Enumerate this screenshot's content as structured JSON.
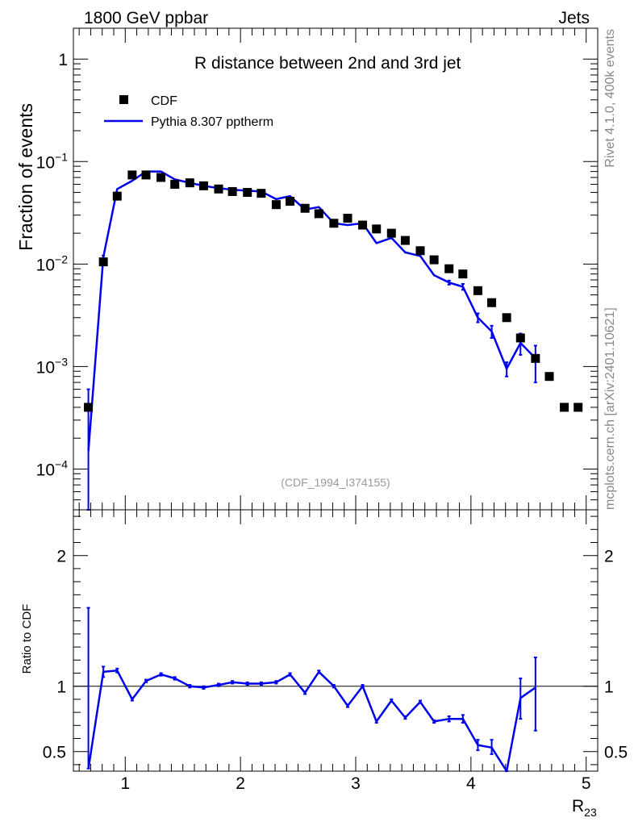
{
  "header": {
    "left_label": "1800 GeV ppbar",
    "right_label": "Jets"
  },
  "side_labels": {
    "rivet": "Rivet 4.1.0,  400k events",
    "mcplots": "mcplots.cern.ch [arXiv:2401.10621]"
  },
  "colors": {
    "data": "#000000",
    "mc": "#0000ee",
    "reference_line": "#000000",
    "watermark": "#999999"
  },
  "chart_data": [
    {
      "type": "scatter",
      "name": "main-panel",
      "title": "R distance between 2nd and 3rd jet",
      "watermark": "(CDF_1994_I374155)",
      "ylabel": "Fraction of events",
      "yscale": "log",
      "ylim": [
        4e-05,
        2
      ],
      "xlim": [
        0.55,
        5.1
      ],
      "y_tick_labels": [
        "1",
        "10^-1",
        "10^-2",
        "10^-3",
        "10^-4"
      ],
      "legend": [
        {
          "label": "CDF",
          "marker": "square"
        },
        {
          "label": "Pythia 8.307 pptherm",
          "marker": "line"
        }
      ],
      "series": [
        {
          "name": "CDF",
          "x": [
            0.68,
            0.81,
            0.93,
            1.06,
            1.18,
            1.31,
            1.43,
            1.56,
            1.68,
            1.81,
            1.93,
            2.06,
            2.18,
            2.31,
            2.43,
            2.56,
            2.68,
            2.81,
            2.93,
            3.06,
            3.18,
            3.31,
            3.43,
            3.56,
            3.68,
            3.81,
            3.93,
            4.06,
            4.18,
            4.31,
            4.43,
            4.56,
            4.68,
            4.81,
            4.93
          ],
          "y": [
            0.0004,
            0.0105,
            0.046,
            0.074,
            0.074,
            0.07,
            0.06,
            0.062,
            0.058,
            0.054,
            0.051,
            0.05,
            0.049,
            0.038,
            0.041,
            0.035,
            0.031,
            0.025,
            0.028,
            0.024,
            0.022,
            0.02,
            0.017,
            0.0135,
            0.011,
            0.009,
            0.008,
            0.0055,
            0.0042,
            0.003,
            0.0019,
            0.0012,
            0.0008,
            0.0004,
            0.0004
          ]
        },
        {
          "name": "Pythia 8.307 pptherm",
          "x": [
            0.68,
            0.81,
            0.93,
            1.06,
            1.18,
            1.31,
            1.43,
            1.56,
            1.68,
            1.81,
            1.93,
            2.06,
            2.18,
            2.31,
            2.43,
            2.56,
            2.68,
            2.81,
            2.93,
            3.06,
            3.18,
            3.31,
            3.43,
            3.56,
            3.68,
            3.81,
            3.93,
            4.06,
            4.18,
            4.31,
            4.43,
            4.56
          ],
          "y": [
            0.00015,
            0.0117,
            0.054,
            0.065,
            0.08,
            0.08,
            0.067,
            0.062,
            0.058,
            0.055,
            0.053,
            0.052,
            0.051,
            0.043,
            0.046,
            0.034,
            0.036,
            0.025,
            0.024,
            0.025,
            0.016,
            0.018,
            0.013,
            0.012,
            0.0078,
            0.0066,
            0.006,
            0.003,
            0.0022,
            0.00095,
            0.0017,
            0.0012
          ],
          "err_low": [
            0.00014,
            0.0004,
            0.0007,
            0.0008,
            0.0008,
            0.0008,
            0.0007,
            0.0007,
            0.0006,
            0.0006,
            0.0006,
            0.0006,
            0.0006,
            0.0005,
            0.0005,
            0.0004,
            0.0004,
            0.0004,
            0.0003,
            0.0003,
            0.0003,
            0.0003,
            0.0003,
            0.0003,
            0.0002,
            0.0003,
            0.0004,
            0.0003,
            0.0003,
            0.00015,
            0.0004,
            0.0005
          ],
          "err_high": [
            0.00045,
            0.0004,
            0.0007,
            0.0008,
            0.0008,
            0.0008,
            0.0007,
            0.0007,
            0.0006,
            0.0006,
            0.0006,
            0.0006,
            0.0006,
            0.0005,
            0.0005,
            0.0004,
            0.0004,
            0.0004,
            0.0003,
            0.0003,
            0.0003,
            0.0003,
            0.0003,
            0.0003,
            0.0002,
            0.0003,
            0.0004,
            0.0003,
            0.0003,
            0.00015,
            0.0004,
            0.0004
          ]
        }
      ]
    },
    {
      "type": "line",
      "name": "ratio-panel",
      "ylabel": "Ratio to CDF",
      "xlabel": "R",
      "xlabel_sub": "23",
      "ylim": [
        0.35,
        2.35
      ],
      "xlim": [
        0.55,
        5.1
      ],
      "x_ticks": [
        1,
        2,
        3,
        4,
        5
      ],
      "x_tick_labels": [
        "1",
        "2",
        "3",
        "4",
        "5"
      ],
      "y_ticks": [
        0.5,
        1,
        2
      ],
      "y_tick_labels": [
        "0.5",
        "1",
        "2"
      ],
      "reference_value": 1,
      "series": [
        {
          "name": "Pythia 8.307 pptherm / CDF",
          "x": [
            0.68,
            0.81,
            0.93,
            1.06,
            1.18,
            1.31,
            1.43,
            1.56,
            1.68,
            1.81,
            1.93,
            2.06,
            2.18,
            2.31,
            2.43,
            2.56,
            2.68,
            2.81,
            2.93,
            3.06,
            3.18,
            3.31,
            3.43,
            3.56,
            3.68,
            3.81,
            3.93,
            4.06,
            4.18,
            4.31,
            4.43,
            4.56
          ],
          "y": [
            0.37,
            1.11,
            1.12,
            0.9,
            1.04,
            1.09,
            1.06,
            1.0,
            0.99,
            1.01,
            1.03,
            1.02,
            1.02,
            1.03,
            1.09,
            0.95,
            1.11,
            1.0,
            0.85,
            1.0,
            0.73,
            0.89,
            0.76,
            0.88,
            0.73,
            0.75,
            0.75,
            0.55,
            0.53,
            0.3,
            0.91,
            0.99
          ],
          "err_low": [
            0.0,
            0.04,
            0.015,
            0.01,
            0.01,
            0.01,
            0.01,
            0.01,
            0.01,
            0.01,
            0.01,
            0.01,
            0.01,
            0.01,
            0.01,
            0.01,
            0.01,
            0.01,
            0.01,
            0.01,
            0.01,
            0.01,
            0.01,
            0.01,
            0.01,
            0.02,
            0.03,
            0.04,
            0.05,
            0.05,
            0.16,
            0.33
          ],
          "err_high": [
            1.23,
            0.04,
            0.015,
            0.01,
            0.01,
            0.01,
            0.01,
            0.01,
            0.01,
            0.01,
            0.01,
            0.01,
            0.01,
            0.01,
            0.01,
            0.01,
            0.01,
            0.01,
            0.01,
            0.01,
            0.01,
            0.01,
            0.01,
            0.01,
            0.01,
            0.02,
            0.03,
            0.04,
            0.06,
            0.05,
            0.15,
            0.23
          ]
        }
      ]
    }
  ]
}
